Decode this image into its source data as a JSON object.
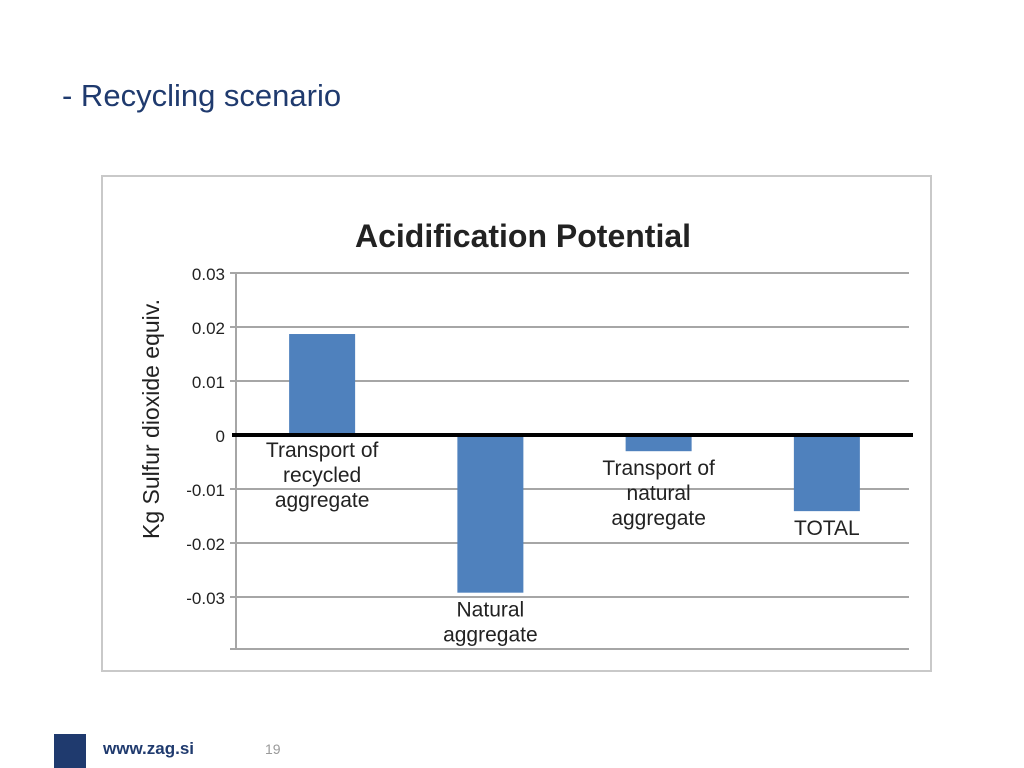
{
  "slide": {
    "title": "- Recycling scenario",
    "footer_url": "www.zag.si",
    "page_number": "19"
  },
  "colors": {
    "title": "#1f3a6e",
    "bar": "#4f81bd",
    "grid": "#a6a6a6",
    "zero_line": "#000000",
    "footer_block": "#1f3a6e"
  },
  "chart_data": {
    "type": "bar",
    "title": "Acidification Potential",
    "xlabel": "",
    "ylabel": "Kg Sulfur dioxide equiv.",
    "ylim": [
      -0.03,
      0.03
    ],
    "yticks": [
      0.03,
      0.02,
      0.01,
      0,
      -0.01,
      -0.02,
      -0.03
    ],
    "ytick_labels": [
      "0.03",
      "0.02",
      "0.01",
      "0",
      "-0.01",
      "-0.02",
      "-0.03"
    ],
    "categories": [
      "Transport of recycled aggregate",
      "Natural aggregate",
      "Transport of natural aggregate",
      "TOTAL"
    ],
    "category_label_lines": [
      [
        "Transport of",
        "recycled",
        "aggregate"
      ],
      [
        "Natural",
        "aggregate"
      ],
      [
        "Transport of",
        "natural",
        "aggregate"
      ],
      [
        "TOTAL"
      ]
    ],
    "values": [
      0.0187,
      -0.0292,
      -0.003,
      -0.0141
    ],
    "grid": true,
    "legend": "none"
  }
}
